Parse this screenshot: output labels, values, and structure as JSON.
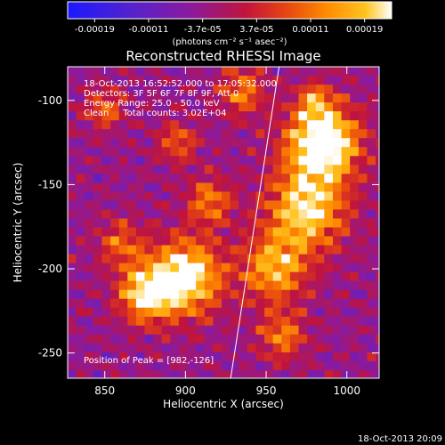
{
  "chart_data": {
    "type": "heatmap",
    "title": "Reconstructed RHESSI Image",
    "xlabel": "Heliocentric X (arcsec)",
    "ylabel": "Heliocentric Y (arcsec)",
    "xlim": [
      827,
      1020
    ],
    "ylim": [
      -265,
      -80
    ],
    "x_ticks": [
      850,
      900,
      950,
      1000
    ],
    "y_ticks": [
      -100,
      -150,
      -200,
      -250
    ],
    "colorbar": {
      "ticks": [
        "-0.00019",
        "-0.00011",
        "-3.7e-05",
        "3.7e-05",
        "0.00011",
        "0.00019"
      ],
      "range": [
        -0.00019,
        0.00019
      ],
      "unit_label": "(photons cm⁻² s⁻¹ asec⁻²)",
      "colormap": "blue-purple-red-orange-yellow-white"
    },
    "annotations": [
      "18-Oct-2013 16:52:52.000 to 17:05:32.000",
      "Detectors: 3F 5F 6F 7F 8F 9F, Att 0",
      "Energy Range: 25.0 - 50.0 keV",
      "Clean     Total counts: 3.02E+04"
    ],
    "peak_label": "Position of Peak = [982,-126]",
    "peak_position": [
      982,
      -126
    ],
    "limb_line": [
      [
        928,
        -265
      ],
      [
        958,
        -80
      ]
    ],
    "grid": false
  },
  "footer_timestamp": "18-Oct-2013 20:09",
  "colors": {
    "background": "#000000",
    "text": "#ffffff",
    "colormap_stops": [
      "#1a1aff",
      "#5522cc",
      "#8c1a9c",
      "#c0143c",
      "#e84810",
      "#ff8c00",
      "#ffc41e",
      "#ffffff"
    ]
  }
}
